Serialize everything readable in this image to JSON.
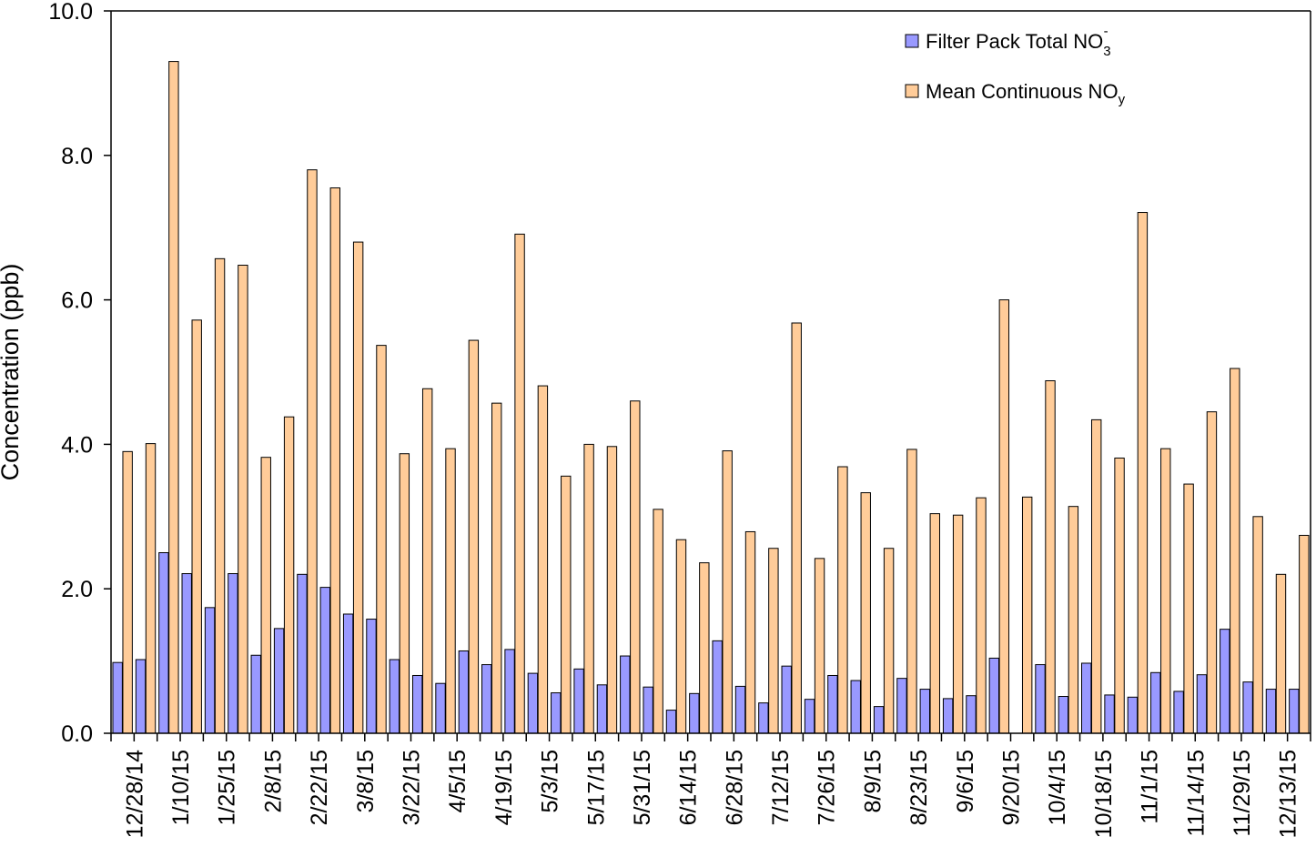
{
  "chart_data": {
    "type": "bar",
    "title": "",
    "xlabel": "",
    "ylabel": "Concentration (ppb)",
    "ylim": [
      0,
      10
    ],
    "yticks": [
      "0.0",
      "2.0",
      "4.0",
      "6.0",
      "8.0",
      "10.0"
    ],
    "xtick_labels": [
      "12/28/14",
      "1/10/15",
      "1/25/15",
      "2/8/15",
      "2/22/15",
      "3/8/15",
      "3/22/15",
      "4/5/15",
      "4/19/15",
      "5/3/15",
      "5/17/15",
      "5/31/15",
      "6/14/15",
      "6/28/15",
      "7/12/15",
      "7/26/15",
      "8/9/15",
      "8/23/15",
      "9/6/15",
      "9/20/15",
      "10/4/15",
      "10/18/15",
      "11/1/15",
      "11/14/15",
      "11/29/15",
      "12/13/15"
    ],
    "legend_position": "top-right",
    "series": [
      {
        "name": "Filter Pack Total NO3-",
        "label_main": "Filter Pack Total NO",
        "label_sub": "3",
        "label_sup": "-",
        "color": "#9999ff",
        "values": [
          0.98,
          1.02,
          2.5,
          2.21,
          1.74,
          2.21,
          1.08,
          1.45,
          2.2,
          2.02,
          1.65,
          1.58,
          1.02,
          0.8,
          0.69,
          1.14,
          0.95,
          1.16,
          0.83,
          0.56,
          0.89,
          0.67,
          1.07,
          0.64,
          0.32,
          0.55,
          1.28,
          0.65,
          0.42,
          0.93,
          0.47,
          0.8,
          0.73,
          0.37,
          0.76,
          0.61,
          0.48,
          0.52,
          1.04,
          null,
          0.95,
          0.51,
          0.97,
          0.53,
          0.5,
          0.84,
          0.58,
          0.81,
          1.44,
          0.71,
          0.61,
          0.61
        ]
      },
      {
        "name": "Mean Continuous NOy",
        "label_main": "Mean Continuous NO",
        "label_sub": "y",
        "label_sup": "",
        "color": "#ffcc99",
        "values": [
          3.9,
          4.01,
          9.3,
          5.72,
          6.57,
          6.48,
          3.82,
          4.38,
          7.8,
          7.55,
          6.8,
          5.37,
          3.87,
          4.77,
          3.94,
          5.44,
          4.57,
          6.91,
          4.81,
          3.56,
          4.0,
          3.97,
          4.6,
          3.1,
          2.68,
          2.36,
          3.91,
          2.79,
          2.56,
          5.68,
          2.42,
          3.69,
          3.33,
          2.56,
          3.93,
          3.04,
          3.02,
          3.26,
          6.0,
          3.27,
          4.88,
          3.14,
          4.34,
          3.81,
          7.21,
          3.94,
          3.45,
          4.45,
          5.05,
          3.0,
          2.2,
          2.74
        ]
      }
    ]
  }
}
